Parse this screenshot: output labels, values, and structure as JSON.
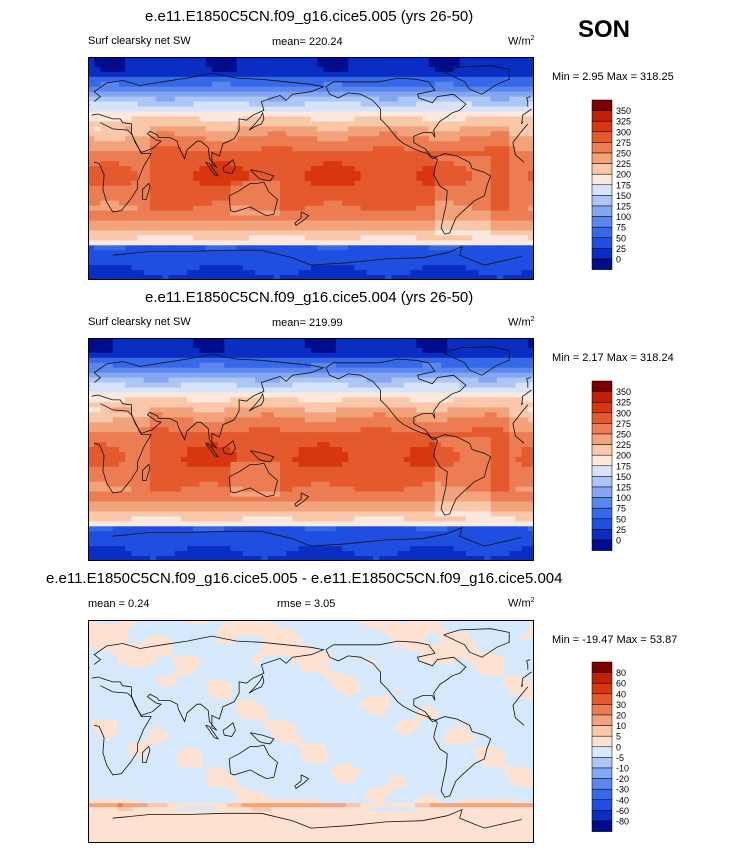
{
  "season": "SON",
  "units_label": "W/m",
  "units_power": "2",
  "chart_data": [
    {
      "type": "heatmap",
      "title": "e.e11.E1850C5CN.f09_g16.cice5.005 (yrs 26-50)",
      "variable": "Surf clearsky net SW",
      "mean_text": "mean= 220.24",
      "minmax_text": "Min =  2.95 Max = 318.25",
      "mean": 220.24,
      "min": 2.95,
      "max": 318.25,
      "levels": [
        0,
        25,
        50,
        75,
        100,
        125,
        150,
        175,
        200,
        225,
        250,
        275,
        300,
        325,
        350
      ],
      "level_labels": [
        "0",
        "25",
        "50",
        "75",
        "100",
        "125",
        "150",
        "175",
        "200",
        "225",
        "250",
        "275",
        "300",
        "325",
        "350"
      ],
      "colors": [
        "#000c8c",
        "#0a2ec4",
        "#1f4fe0",
        "#3569e8",
        "#5a86ee",
        "#84a6f3",
        "#adc5f7",
        "#d6e3fb",
        "#fce8dc",
        "#f9c7aa",
        "#f3a37c",
        "#ec7d52",
        "#e45a2d",
        "#d8360f",
        "#c22008",
        "#7a0000"
      ]
    },
    {
      "type": "heatmap",
      "title": "e.e11.E1850C5CN.f09_g16.cice5.004 (yrs 26-50)",
      "variable": "Surf clearsky net SW",
      "mean_text": "mean= 219.99",
      "minmax_text": "Min =  2.17 Max = 318.24",
      "mean": 219.99,
      "min": 2.17,
      "max": 318.24,
      "levels": [
        0,
        25,
        50,
        75,
        100,
        125,
        150,
        175,
        200,
        225,
        250,
        275,
        300,
        325,
        350
      ],
      "level_labels": [
        "0",
        "25",
        "50",
        "75",
        "100",
        "125",
        "150",
        "175",
        "200",
        "225",
        "250",
        "275",
        "300",
        "325",
        "350"
      ],
      "colors": [
        "#000c8c",
        "#0a2ec4",
        "#1f4fe0",
        "#3569e8",
        "#5a86ee",
        "#84a6f3",
        "#adc5f7",
        "#d6e3fb",
        "#fce8dc",
        "#f9c7aa",
        "#f3a37c",
        "#ec7d52",
        "#e45a2d",
        "#d8360f",
        "#c22008",
        "#7a0000"
      ]
    },
    {
      "type": "heatmap",
      "title": "e.e11.E1850C5CN.f09_g16.cice5.005 - e.e11.E1850C5CN.f09_g16.cice5.004",
      "variable": "",
      "mean_text": "mean =   0.24",
      "rmse_text": "rmse =   3.05",
      "minmax_text": "Min = -19.47 Max =  53.87",
      "mean": 0.24,
      "rmse": 3.05,
      "min": -19.47,
      "max": 53.87,
      "levels": [
        -80,
        -60,
        -40,
        -30,
        -20,
        -10,
        -5,
        0,
        5,
        10,
        20,
        30,
        40,
        60,
        80
      ],
      "level_labels": [
        "-80",
        "-60",
        "-40",
        "-30",
        "-20",
        "-10",
        "-5",
        "0",
        "5",
        "10",
        "20",
        "30",
        "40",
        "60",
        "80"
      ],
      "colors": [
        "#000c8c",
        "#0a2ec4",
        "#1f4fe0",
        "#3569e8",
        "#5a86ee",
        "#84a6f3",
        "#adc5f7",
        "#d6e8fb",
        "#fde2d2",
        "#f9c7aa",
        "#f3a37c",
        "#ec7d52",
        "#e45a2d",
        "#d8360f",
        "#c22008",
        "#7a0000"
      ]
    }
  ]
}
